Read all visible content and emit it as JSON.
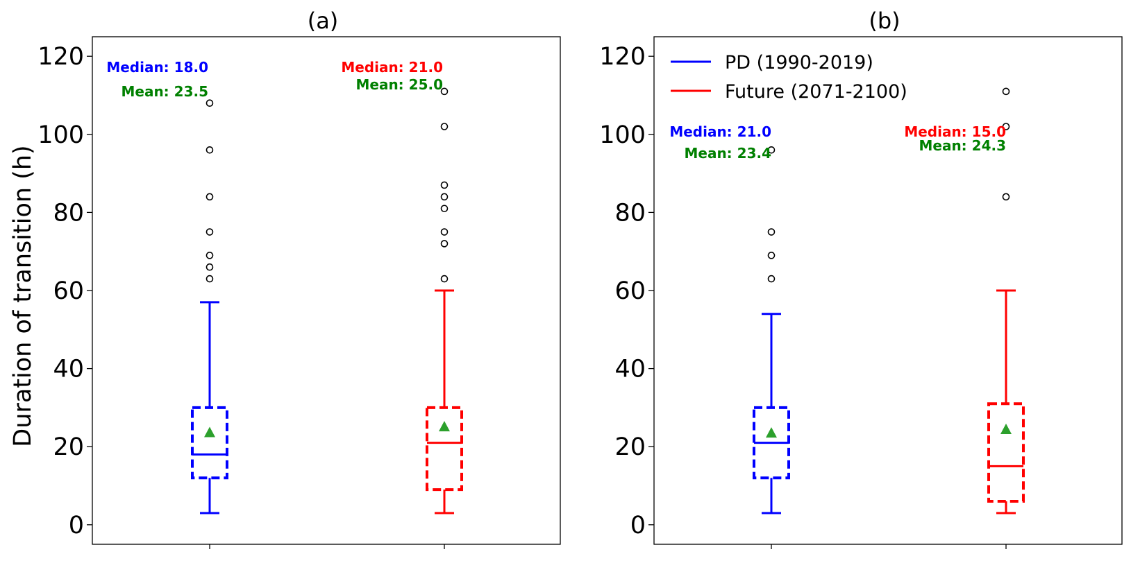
{
  "chart_data": [
    {
      "type": "box",
      "title": "(a)",
      "ylabel": "Duration of transition (h)",
      "ylim": [
        -5,
        125
      ],
      "yticks": [
        0,
        20,
        40,
        60,
        80,
        100,
        120
      ],
      "boxes": [
        {
          "color": "#0000ff",
          "whisker_low": 3,
          "q1": 12,
          "median": 18,
          "q3": 30,
          "whisker_high": 57,
          "mean": 23.5,
          "outliers": [
            63,
            66,
            69,
            75,
            84,
            96,
            108
          ],
          "median_label": "Median: 18.0",
          "mean_label": "Mean: 23.5"
        },
        {
          "color": "#ff0000",
          "whisker_low": 3,
          "q1": 9,
          "median": 21,
          "q3": 30,
          "whisker_high": 60,
          "mean": 25.0,
          "outliers": [
            63,
            72,
            75,
            81,
            84,
            87,
            102,
            111
          ],
          "median_label": "Median: 21.0",
          "mean_label": "Mean: 25.0"
        }
      ],
      "mean_color": "#2ca02c",
      "annotation_mean_color": "#008000"
    },
    {
      "type": "box",
      "title": "(b)",
      "ylabel": "",
      "ylim": [
        -5,
        125
      ],
      "yticks": [
        0,
        20,
        40,
        60,
        80,
        100,
        120
      ],
      "legend": {
        "position": "top-left",
        "entries": [
          {
            "name": "PD (1990-2019)",
            "color": "#0000ff"
          },
          {
            "name": "Future (2071-2100)",
            "color": "#ff0000"
          }
        ]
      },
      "boxes": [
        {
          "color": "#0000ff",
          "whisker_low": 3,
          "q1": 12,
          "median": 21,
          "q3": 30,
          "whisker_high": 54,
          "mean": 23.4,
          "outliers": [
            63,
            69,
            75,
            96
          ],
          "median_label": "Median: 21.0",
          "mean_label": "Mean: 23.4"
        },
        {
          "color": "#ff0000",
          "whisker_low": 3,
          "q1": 6,
          "median": 15,
          "q3": 31,
          "whisker_high": 60,
          "mean": 24.3,
          "outliers": [
            84,
            102,
            111
          ],
          "median_label": "Median: 15.0",
          "mean_label": "Mean: 24.3"
        }
      ],
      "mean_color": "#2ca02c",
      "annotation_mean_color": "#008000"
    }
  ]
}
